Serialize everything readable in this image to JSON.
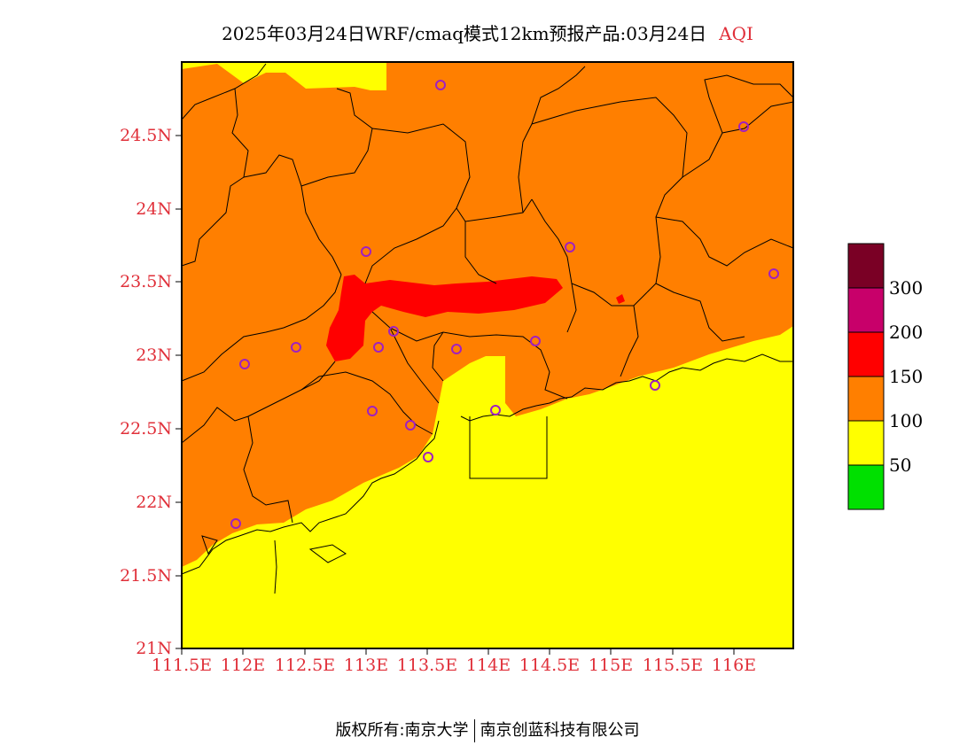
{
  "title": {
    "text": "2025年03月24日WRF/cmaq模式12km预报产品:03月24日",
    "badge": "AQI"
  },
  "axes": {
    "lat_labels": [
      "24.5N",
      "24N",
      "23.5N",
      "23N",
      "22.5N",
      "22N",
      "21.5N",
      "21N"
    ],
    "lon_labels": [
      "111.5E",
      "112E",
      "112.5E",
      "113E",
      "113.5E",
      "114E",
      "114.5E",
      "115E",
      "115.5E",
      "116E"
    ]
  },
  "legend": {
    "labels": [
      "300",
      "200",
      "150",
      "100",
      "50"
    ],
    "colors": {
      "hazardous": "#7a0025",
      "very_unhealthy": "#c8006a",
      "unhealthy": "#ff0000",
      "sensitive": "#ff7f00",
      "moderate": "#ffff00",
      "good": "#00e000"
    }
  },
  "footer": {
    "left": "版权所有:南京大学",
    "right": "南京创蓝科技有限公司"
  }
}
